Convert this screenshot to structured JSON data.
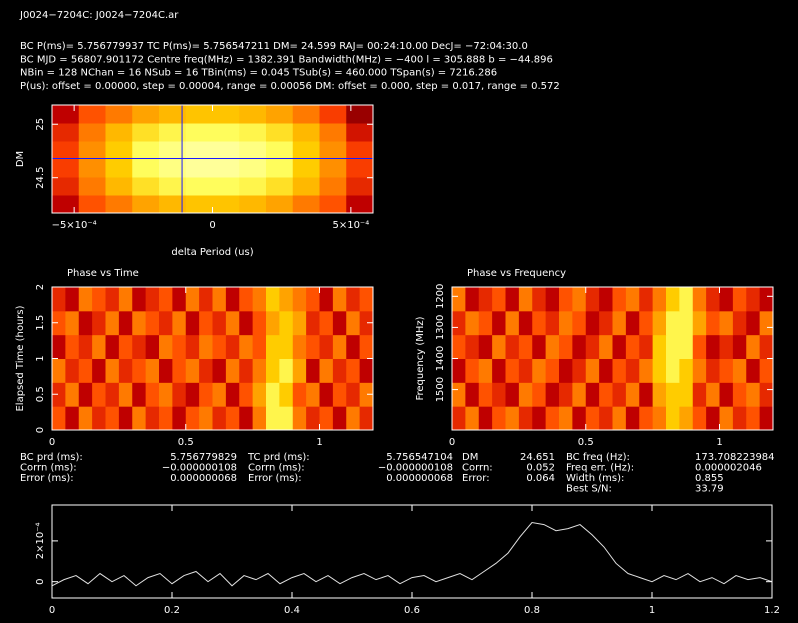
{
  "header": {
    "title": "J0024−7204C: J0024−7204C.ar",
    "lines": [
      "BC P(ms)= 5.756779937 TC P(ms)= 5.756547211 DM= 24.599 RAJ= 00:24:10.00 DecJ= −72:04:30.0",
      "BC MJD = 56807.901172 Centre freq(MHz) = 1382.391 Bandwidth(MHz) = −400 l = 305.888 b = −44.896",
      "NBin = 128 NChan = 16 NSub = 16 TBin(ms) = 0.045 TSub(s) = 460.000 TSpan(s) = 7216.286",
      "P(us): offset = 0.00000, step = 0.00004, range = 0.00056 DM: offset = 0.000, step = 0.017, range = 0.572"
    ]
  },
  "chart_data": [
    {
      "type": "heatmap",
      "xlabel": "delta Period (us)",
      "ylabel": "DM",
      "xlim": [
        -0.00058,
        0.00058
      ],
      "ylim": [
        24.17,
        25.18
      ],
      "xticks": [
        {
          "value": -0.0005,
          "label": "−5×10⁻⁴"
        },
        0,
        {
          "value": 0.0005,
          "label": "5×10⁻⁴"
        }
      ],
      "yticks": [
        24.5,
        25
      ],
      "crosshair": {
        "x": -0.00011,
        "y": 24.68
      },
      "z": [
        [
          0.3,
          0.5,
          0.6,
          0.7,
          0.75,
          0.78,
          0.78,
          0.75,
          0.7,
          0.6,
          0.5,
          0.3
        ],
        [
          0.4,
          0.6,
          0.75,
          0.85,
          0.9,
          0.92,
          0.92,
          0.9,
          0.85,
          0.75,
          0.6,
          0.4
        ],
        [
          0.45,
          0.65,
          0.8,
          0.92,
          0.97,
          1.0,
          1.0,
          0.97,
          0.92,
          0.8,
          0.65,
          0.45
        ],
        [
          0.45,
          0.65,
          0.8,
          0.92,
          0.97,
          1.0,
          1.0,
          0.97,
          0.92,
          0.8,
          0.65,
          0.45
        ],
        [
          0.4,
          0.6,
          0.75,
          0.85,
          0.9,
          0.92,
          0.92,
          0.9,
          0.85,
          0.75,
          0.6,
          0.35
        ],
        [
          0.3,
          0.5,
          0.6,
          0.7,
          0.75,
          0.78,
          0.78,
          0.75,
          0.7,
          0.6,
          0.45,
          0.2
        ]
      ]
    },
    {
      "type": "heatmap",
      "title": "Phase vs Time",
      "ylabel": "Elapsed Time (hours)",
      "xlim": [
        0,
        1.2
      ],
      "ylim": [
        0,
        2
      ],
      "xticks": [
        0,
        0.5,
        1
      ],
      "yticks": [
        0,
        0.5,
        1,
        1.5,
        2
      ],
      "z": [
        [
          0.5,
          0.3,
          0.6,
          0.4,
          0.5,
          0.3,
          0.6,
          0.4,
          0.5,
          0.3,
          0.5,
          0.6,
          0.4,
          0.5,
          0.3,
          0.6,
          0.9,
          0.9,
          0.6,
          0.4,
          0.5,
          0.3,
          0.6,
          0.4
        ],
        [
          0.4,
          0.6,
          0.3,
          0.5,
          0.4,
          0.6,
          0.3,
          0.5,
          0.6,
          0.4,
          0.3,
          0.5,
          0.6,
          0.3,
          0.5,
          0.7,
          0.9,
          0.8,
          0.5,
          0.6,
          0.3,
          0.5,
          0.4,
          0.6
        ],
        [
          0.6,
          0.4,
          0.5,
          0.3,
          0.6,
          0.4,
          0.5,
          0.6,
          0.3,
          0.5,
          0.6,
          0.4,
          0.3,
          0.6,
          0.4,
          0.6,
          0.8,
          0.9,
          0.7,
          0.3,
          0.6,
          0.4,
          0.5,
          0.3
        ],
        [
          0.3,
          0.5,
          0.4,
          0.6,
          0.3,
          0.5,
          0.4,
          0.3,
          0.6,
          0.5,
          0.4,
          0.6,
          0.5,
          0.4,
          0.6,
          0.5,
          0.8,
          0.8,
          0.6,
          0.5,
          0.4,
          0.6,
          0.3,
          0.5
        ],
        [
          0.5,
          0.6,
          0.3,
          0.4,
          0.6,
          0.3,
          0.6,
          0.5,
          0.4,
          0.6,
          0.3,
          0.5,
          0.4,
          0.6,
          0.3,
          0.5,
          0.7,
          0.8,
          0.7,
          0.4,
          0.5,
          0.3,
          0.6,
          0.4
        ],
        [
          0.4,
          0.3,
          0.6,
          0.5,
          0.4,
          0.6,
          0.3,
          0.4,
          0.5,
          0.3,
          0.6,
          0.4,
          0.6,
          0.3,
          0.5,
          0.6,
          0.8,
          0.7,
          0.6,
          0.5,
          0.3,
          0.6,
          0.4,
          0.5
        ]
      ]
    },
    {
      "type": "heatmap",
      "title": "Phase vs Frequency",
      "ylabel": "Frequency (MHz)",
      "xlim": [
        0,
        1.2
      ],
      "ylim": [
        1630,
        1170
      ],
      "xticks": [
        0,
        0.5,
        1
      ],
      "yticks": [
        1200,
        1300,
        1400,
        1500
      ],
      "z": [
        [
          0.4,
          0.6,
          0.3,
          0.5,
          0.6,
          0.4,
          0.3,
          0.5,
          0.6,
          0.3,
          0.5,
          0.4,
          0.6,
          0.3,
          0.5,
          0.6,
          0.8,
          0.7,
          0.5,
          0.3,
          0.6,
          0.4,
          0.5,
          0.3
        ],
        [
          0.6,
          0.3,
          0.5,
          0.4,
          0.3,
          0.6,
          0.5,
          0.3,
          0.4,
          0.6,
          0.3,
          0.5,
          0.4,
          0.6,
          0.3,
          0.7,
          0.8,
          0.8,
          0.4,
          0.6,
          0.3,
          0.5,
          0.6,
          0.4
        ],
        [
          0.3,
          0.5,
          0.6,
          0.3,
          0.5,
          0.4,
          0.6,
          0.5,
          0.3,
          0.4,
          0.6,
          0.3,
          0.5,
          0.4,
          0.6,
          0.8,
          0.9,
          0.8,
          0.6,
          0.4,
          0.5,
          0.6,
          0.3,
          0.5
        ],
        [
          0.5,
          0.4,
          0.3,
          0.6,
          0.4,
          0.5,
          0.3,
          0.6,
          0.5,
          0.3,
          0.4,
          0.6,
          0.3,
          0.5,
          0.4,
          0.8,
          0.9,
          0.9,
          0.5,
          0.3,
          0.4,
          0.3,
          0.6,
          0.4
        ],
        [
          0.4,
          0.6,
          0.5,
          0.3,
          0.6,
          0.3,
          0.5,
          0.4,
          0.6,
          0.5,
          0.3,
          0.4,
          0.6,
          0.3,
          0.5,
          0.7,
          0.9,
          0.9,
          0.7,
          0.5,
          0.6,
          0.4,
          0.3,
          0.6
        ],
        [
          0.6,
          0.3,
          0.4,
          0.5,
          0.3,
          0.6,
          0.4,
          0.3,
          0.5,
          0.6,
          0.4,
          0.3,
          0.5,
          0.6,
          0.4,
          0.6,
          0.8,
          0.9,
          0.6,
          0.4,
          0.3,
          0.5,
          0.4,
          0.3
        ]
      ]
    },
    {
      "type": "line",
      "xlim": [
        0,
        1.2
      ],
      "ylim": [
        -8e-05,
        0.000376
      ],
      "xticks": [
        0,
        0.2,
        0.4,
        0.6,
        0.8,
        1,
        1.2
      ],
      "yticks": [
        0,
        {
          "value": 0.0002,
          "label": "2×10⁻⁴"
        }
      ],
      "color": "#e0e0e0",
      "x": [
        0,
        0.02,
        0.04,
        0.06,
        0.08,
        0.1,
        0.12,
        0.14,
        0.16,
        0.18,
        0.2,
        0.22,
        0.24,
        0.26,
        0.28,
        0.3,
        0.32,
        0.34,
        0.36,
        0.38,
        0.4,
        0.42,
        0.44,
        0.46,
        0.48,
        0.5,
        0.52,
        0.54,
        0.56,
        0.58,
        0.6,
        0.62,
        0.64,
        0.66,
        0.68,
        0.7,
        0.72,
        0.74,
        0.76,
        0.78,
        0.8,
        0.82,
        0.84,
        0.86,
        0.88,
        0.9,
        0.92,
        0.94,
        0.96,
        0.98,
        1,
        1.02,
        1.04,
        1.06,
        1.08,
        1.1,
        1.12,
        1.14,
        1.16,
        1.18,
        1.2
      ],
      "values": [
        -2e-05,
        1e-05,
        3e-05,
        -1e-05,
        4e-05,
        0,
        3e-05,
        -2e-05,
        2e-05,
        4e-05,
        -1e-05,
        3e-05,
        5e-05,
        0,
        4e-05,
        -2e-05,
        3e-05,
        1e-05,
        4e-05,
        -1e-05,
        2e-05,
        4e-05,
        0,
        3e-05,
        -1e-05,
        2e-05,
        4e-05,
        1e-05,
        3e-05,
        -1e-05,
        2e-05,
        3e-05,
        0,
        2e-05,
        4e-05,
        1e-05,
        5e-05,
        9e-05,
        0.00014,
        0.00022,
        0.00029,
        0.00028,
        0.00025,
        0.00026,
        0.00028,
        0.00023,
        0.00017,
        9e-05,
        4e-05,
        2e-05,
        0,
        3e-05,
        1e-05,
        4e-05,
        0,
        2e-05,
        -1e-05,
        3e-05,
        1e-05,
        2e-05,
        0
      ]
    }
  ],
  "stats": [
    {
      "labels": [
        "BC prd (ms):",
        "Corrn (ms):",
        "Error (ms):"
      ],
      "values": [
        "5.756779829",
        "−0.000000108",
        "0.000000068"
      ]
    },
    {
      "labels": [
        "TC prd (ms):",
        "Corrn (ms):",
        "Error (ms):"
      ],
      "values": [
        "5.756547104",
        "−0.000000108",
        "0.000000068"
      ]
    },
    {
      "labels": [
        "DM",
        "Corrn:",
        "Error:"
      ],
      "values": [
        "24.651",
        "0.052",
        "0.064"
      ]
    },
    {
      "labels": [
        "BC freq (Hz):",
        "Freq err. (Hz):",
        "Width (ms):",
        "Best S/N:"
      ],
      "values": [
        "173.708223984",
        "0.000002046",
        "0.855",
        "33.79"
      ]
    }
  ]
}
